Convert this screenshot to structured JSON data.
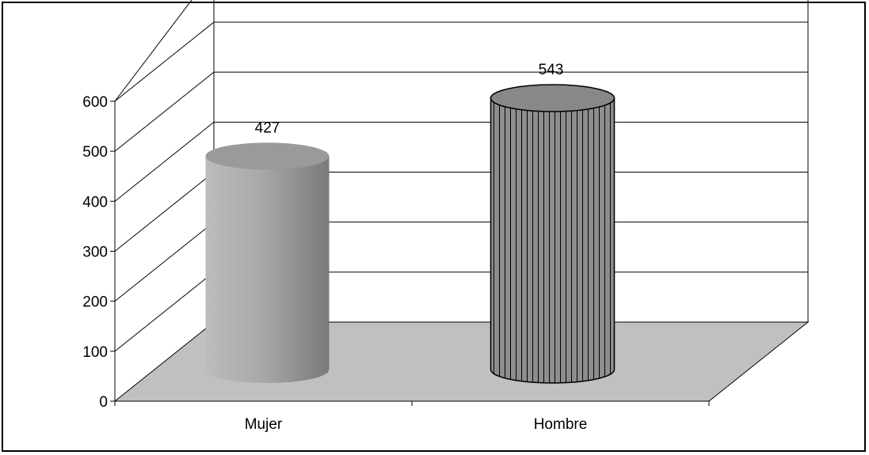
{
  "chart_data": {
    "type": "bar",
    "style": "3d-cylinder",
    "categories": [
      "Mujer",
      "Hombre"
    ],
    "values": [
      427,
      543
    ],
    "data_labels": [
      "427",
      "543"
    ],
    "ylim": [
      0,
      600
    ],
    "yticks": [
      0,
      100,
      200,
      300,
      400,
      500,
      600
    ],
    "ytick_labels": [
      "0",
      "100",
      "200",
      "300",
      "400",
      "500",
      "600"
    ],
    "gridlines": true,
    "legend": "none",
    "colors": {
      "mujer_fill": "#a8a8a8",
      "hombre_fill": "#8c8c8c",
      "floor": "#c0c0c0",
      "lines": "#000000"
    }
  }
}
